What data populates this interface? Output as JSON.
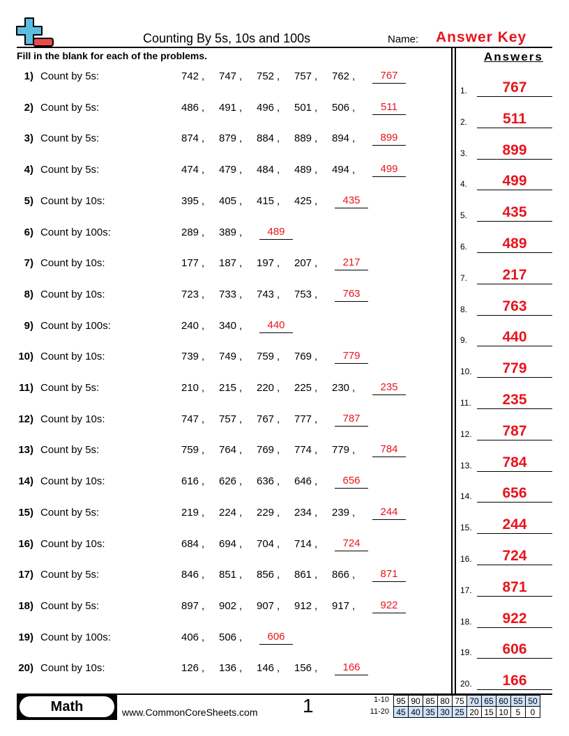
{
  "header": {
    "title": "Counting By 5s, 10s and 100s",
    "name_label": "Name:",
    "name_value": "Answer Key",
    "logo_icon": "plus-minus-logo-icon"
  },
  "instructions": "Fill in the blank for each of the problems.",
  "answers_heading": "Answers",
  "colors": {
    "answer": "#e8141c",
    "logo_plus": "#5bbde0",
    "logo_minus": "#e84b4b",
    "score_highlight": "#cfe2fa"
  },
  "problems": [
    {
      "num": "1)",
      "label": "Count by 5s:",
      "seq": [
        "742",
        "747",
        "752",
        "757",
        "762"
      ],
      "answer": "767"
    },
    {
      "num": "2)",
      "label": "Count by 5s:",
      "seq": [
        "486",
        "491",
        "496",
        "501",
        "506"
      ],
      "answer": "511"
    },
    {
      "num": "3)",
      "label": "Count by 5s:",
      "seq": [
        "874",
        "879",
        "884",
        "889",
        "894"
      ],
      "answer": "899"
    },
    {
      "num": "4)",
      "label": "Count by 5s:",
      "seq": [
        "474",
        "479",
        "484",
        "489",
        "494"
      ],
      "answer": "499"
    },
    {
      "num": "5)",
      "label": "Count by 10s:",
      "seq": [
        "395",
        "405",
        "415",
        "425"
      ],
      "answer": "435"
    },
    {
      "num": "6)",
      "label": "Count by 100s:",
      "seq": [
        "289",
        "389"
      ],
      "answer": "489"
    },
    {
      "num": "7)",
      "label": "Count by 10s:",
      "seq": [
        "177",
        "187",
        "197",
        "207"
      ],
      "answer": "217"
    },
    {
      "num": "8)",
      "label": "Count by 10s:",
      "seq": [
        "723",
        "733",
        "743",
        "753"
      ],
      "answer": "763"
    },
    {
      "num": "9)",
      "label": "Count by 100s:",
      "seq": [
        "240",
        "340"
      ],
      "answer": "440"
    },
    {
      "num": "10)",
      "label": "Count by 10s:",
      "seq": [
        "739",
        "749",
        "759",
        "769"
      ],
      "answer": "779"
    },
    {
      "num": "11)",
      "label": "Count by 5s:",
      "seq": [
        "210",
        "215",
        "220",
        "225",
        "230"
      ],
      "answer": "235"
    },
    {
      "num": "12)",
      "label": "Count by 10s:",
      "seq": [
        "747",
        "757",
        "767",
        "777"
      ],
      "answer": "787"
    },
    {
      "num": "13)",
      "label": "Count by 5s:",
      "seq": [
        "759",
        "764",
        "769",
        "774",
        "779"
      ],
      "answer": "784"
    },
    {
      "num": "14)",
      "label": "Count by 10s:",
      "seq": [
        "616",
        "626",
        "636",
        "646"
      ],
      "answer": "656"
    },
    {
      "num": "15)",
      "label": "Count by 5s:",
      "seq": [
        "219",
        "224",
        "229",
        "234",
        "239"
      ],
      "answer": "244"
    },
    {
      "num": "16)",
      "label": "Count by 10s:",
      "seq": [
        "684",
        "694",
        "704",
        "714"
      ],
      "answer": "724"
    },
    {
      "num": "17)",
      "label": "Count by 5s:",
      "seq": [
        "846",
        "851",
        "856",
        "861",
        "866"
      ],
      "answer": "871"
    },
    {
      "num": "18)",
      "label": "Count by 5s:",
      "seq": [
        "897",
        "902",
        "907",
        "912",
        "917"
      ],
      "answer": "922"
    },
    {
      "num": "19)",
      "label": "Count by 100s:",
      "seq": [
        "406",
        "506"
      ],
      "answer": "606"
    },
    {
      "num": "20)",
      "label": "Count by 10s:",
      "seq": [
        "126",
        "136",
        "146",
        "156"
      ],
      "answer": "166"
    }
  ],
  "answer_key": [
    {
      "num": "1.",
      "value": "767"
    },
    {
      "num": "2.",
      "value": "511"
    },
    {
      "num": "3.",
      "value": "899"
    },
    {
      "num": "4.",
      "value": "499"
    },
    {
      "num": "5.",
      "value": "435"
    },
    {
      "num": "6.",
      "value": "489"
    },
    {
      "num": "7.",
      "value": "217"
    },
    {
      "num": "8.",
      "value": "763"
    },
    {
      "num": "9.",
      "value": "440"
    },
    {
      "num": "10.",
      "value": "779"
    },
    {
      "num": "11.",
      "value": "235"
    },
    {
      "num": "12.",
      "value": "787"
    },
    {
      "num": "13.",
      "value": "784"
    },
    {
      "num": "14.",
      "value": "656"
    },
    {
      "num": "15.",
      "value": "244"
    },
    {
      "num": "16.",
      "value": "724"
    },
    {
      "num": "17.",
      "value": "871"
    },
    {
      "num": "18.",
      "value": "922"
    },
    {
      "num": "19.",
      "value": "606"
    },
    {
      "num": "20.",
      "value": "166"
    }
  ],
  "footer": {
    "subject": "Math",
    "site": "www.CommonCoreSheets.com",
    "page": "1",
    "score_rows": [
      {
        "label": "1-10",
        "values": [
          "95",
          "90",
          "85",
          "80",
          "75",
          "70",
          "65",
          "60",
          "55",
          "50"
        ],
        "highlight": [
          false,
          false,
          false,
          false,
          false,
          true,
          true,
          true,
          true,
          true
        ]
      },
      {
        "label": "11-20",
        "values": [
          "45",
          "40",
          "35",
          "30",
          "25",
          "20",
          "15",
          "10",
          "5",
          "0"
        ],
        "highlight": [
          true,
          true,
          true,
          true,
          true,
          false,
          false,
          false,
          false,
          false
        ]
      }
    ]
  }
}
